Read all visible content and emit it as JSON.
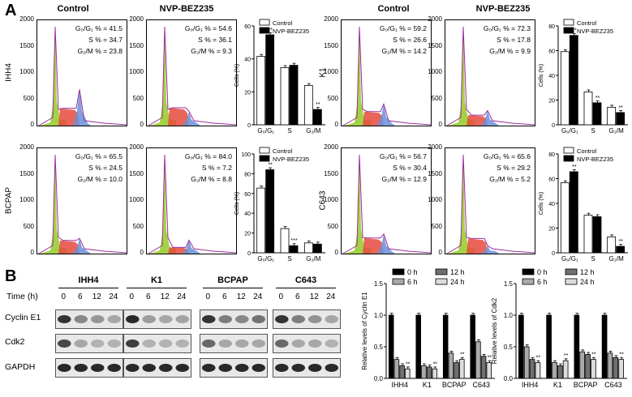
{
  "panel_a": {
    "letter": "A",
    "column_titles": [
      "Control",
      "NVP-BEZ235",
      "Control",
      "NVP-BEZ235"
    ],
    "flow_y_ticks": [
      "2000",
      "1500",
      "1000",
      "500",
      "0"
    ],
    "cell_lines": [
      {
        "name": "IHH4",
        "control": {
          "g0g1": "G₀/G₁ % = 41.5",
          "s": "S % = 34.7",
          "g2m": "G₂/M % = 23.8"
        },
        "treated": {
          "g0g1": "G₀/G₁ % = 54.6",
          "s": "S % = 36.1",
          "g2m": "G₂/M % = 9.3"
        }
      },
      {
        "name": "K1",
        "control": {
          "g0g1": "G₀/G₁ % = 59.2",
          "s": "S % = 26.6",
          "g2m": "G₂/M % = 14.2"
        },
        "treated": {
          "g0g1": "G₀/G₁ % = 72.3",
          "s": "S % = 17.8",
          "g2m": "G₂/M % = 9.9"
        }
      },
      {
        "name": "BCPAP",
        "control": {
          "g0g1": "G₀/G₁ % = 65.5",
          "s": "S % = 24.5",
          "g2m": "G₂/M % = 10.0"
        },
        "treated": {
          "g0g1": "G₀/G₁ % = 84.0",
          "s": "S % = 7.2",
          "g2m": "G₂/M % = 8.8"
        }
      },
      {
        "name": "C643",
        "control": {
          "g0g1": "G₀/G₁ % = 56.7",
          "s": "S % = 30.4",
          "g2m": "G₂/M % = 12.9"
        },
        "treated": {
          "g0g1": "G₀/G₁ % = 65.6",
          "s": "S % = 29.2",
          "g2m": "G₂/M % = 5.2"
        }
      }
    ]
  },
  "panel_b": {
    "letter": "B",
    "time_label": "Time (h)",
    "cell_lines": [
      "IHH4",
      "K1",
      "BCPAP",
      "C643"
    ],
    "timepoints": [
      "0",
      "6",
      "12",
      "24"
    ],
    "proteins": [
      "Cyclin E1",
      "Cdk2",
      "GAPDH"
    ],
    "cyclin_intensity": [
      [
        0.85,
        0.45,
        0.38,
        0.3
      ],
      [
        0.9,
        0.35,
        0.3,
        0.32
      ],
      [
        0.85,
        0.5,
        0.45,
        0.55
      ],
      [
        0.85,
        0.5,
        0.4,
        0.3
      ]
    ],
    "cdk2_intensity": [
      [
        0.75,
        0.3,
        0.25,
        0.25
      ],
      [
        0.8,
        0.25,
        0.25,
        0.25
      ],
      [
        0.6,
        0.3,
        0.3,
        0.3
      ],
      [
        0.6,
        0.3,
        0.3,
        0.25
      ]
    ],
    "gapdh_intensity": [
      [
        0.9,
        0.9,
        0.9,
        0.9
      ],
      [
        0.9,
        0.9,
        0.9,
        0.9
      ],
      [
        0.9,
        0.9,
        0.9,
        0.9
      ],
      [
        0.9,
        0.9,
        0.9,
        0.9
      ]
    ]
  },
  "colors": {
    "control": "#ffffff",
    "treated": "#000000",
    "h0": "#000000",
    "h6": "#aaaaaa",
    "h12": "#707070",
    "h24": "#dddddd",
    "hist_green": "#9acd32",
    "hist_red": "#e64a3c",
    "hist_blue": "#6a8fd8",
    "hist_purple": "#9b2d9b"
  },
  "chart_data": [
    {
      "type": "bar",
      "cell_line": "IHH4",
      "ylabel": "Cells (%)",
      "ylim": [
        0,
        60
      ],
      "yticks": [
        "0",
        "20",
        "40",
        "60"
      ],
      "categories": [
        "G₀/G₁",
        "S",
        "G₂/M"
      ],
      "legend": [
        "Control",
        "NVP-BEZ235"
      ],
      "series": [
        {
          "name": "Control",
          "values": [
            41.5,
            34.7,
            23.8
          ]
        },
        {
          "name": "NVP-BEZ235",
          "values": [
            54.6,
            36.1,
            9.3
          ]
        }
      ],
      "annotations": [
        {
          "category": 0,
          "text": "**"
        },
        {
          "category": 2,
          "text": "**"
        }
      ]
    },
    {
      "type": "bar",
      "cell_line": "K1",
      "ylabel": "Cells (%)",
      "ylim": [
        0,
        80
      ],
      "yticks": [
        "0",
        "20",
        "40",
        "60",
        "80"
      ],
      "categories": [
        "G₀/G₁",
        "S",
        "G₂/M"
      ],
      "legend": [
        "Control",
        "NVP-BEZ235"
      ],
      "series": [
        {
          "name": "Control",
          "values": [
            59.2,
            26.6,
            14.2
          ]
        },
        {
          "name": "NVP-BEZ235",
          "values": [
            72.3,
            17.8,
            9.9
          ]
        }
      ],
      "annotations": [
        {
          "category": 0,
          "text": "**"
        },
        {
          "category": 1,
          "text": "**"
        },
        {
          "category": 2,
          "text": "**"
        }
      ]
    },
    {
      "type": "bar",
      "cell_line": "BCPAP",
      "ylabel": "Cells (%)",
      "ylim": [
        0,
        100
      ],
      "yticks": [
        "0",
        "20",
        "40",
        "60",
        "80",
        "100"
      ],
      "categories": [
        "G₀/G₁",
        "S",
        "G₂/M"
      ],
      "legend": [
        "Control",
        "NVP-BEZ235"
      ],
      "series": [
        {
          "name": "Control",
          "values": [
            65.5,
            24.5,
            10.0
          ]
        },
        {
          "name": "NVP-BEZ235",
          "values": [
            84.0,
            7.2,
            8.8
          ]
        }
      ],
      "annotations": [
        {
          "category": 0,
          "text": "**"
        },
        {
          "category": 1,
          "text": "***"
        }
      ]
    },
    {
      "type": "bar",
      "cell_line": "C643",
      "ylabel": "Cells (%)",
      "ylim": [
        0,
        80
      ],
      "yticks": [
        "0",
        "20",
        "40",
        "60",
        "80"
      ],
      "categories": [
        "G₀/G₁",
        "S",
        "G₂/M"
      ],
      "legend": [
        "Control",
        "NVP-BEZ235"
      ],
      "series": [
        {
          "name": "Control",
          "values": [
            56.7,
            30.4,
            12.9
          ]
        },
        {
          "name": "NVP-BEZ235",
          "values": [
            65.6,
            29.2,
            5.2
          ]
        }
      ],
      "annotations": [
        {
          "category": 0,
          "text": "**"
        },
        {
          "category": 2,
          "text": "**"
        }
      ]
    },
    {
      "type": "bar",
      "ylabel": "Relative levels of Cyclin E1",
      "ylim": [
        0,
        1.5
      ],
      "yticks": [
        "0.0",
        "0.5",
        "1.0",
        "1.5"
      ],
      "categories": [
        "IHH4",
        "K1",
        "BCPAP",
        "C643"
      ],
      "legend": [
        "0 h",
        "12 h",
        "6 h",
        "24 h"
      ],
      "series": [
        {
          "name": "0 h",
          "values": [
            1.0,
            1.0,
            1.0,
            1.0
          ]
        },
        {
          "name": "6 h",
          "values": [
            0.3,
            0.2,
            0.4,
            0.58
          ]
        },
        {
          "name": "12 h",
          "values": [
            0.2,
            0.18,
            0.25,
            0.35
          ]
        },
        {
          "name": "24 h",
          "values": [
            0.15,
            0.15,
            0.3,
            0.25
          ]
        }
      ],
      "annotations": [
        {
          "category": 0,
          "text": "**"
        },
        {
          "category": 1,
          "text": "**"
        },
        {
          "category": 2,
          "text": "**"
        },
        {
          "category": 3,
          "text": "**"
        }
      ]
    },
    {
      "type": "bar",
      "ylabel": "Relative levels of Cdk2",
      "ylim": [
        0,
        1.5
      ],
      "yticks": [
        "0.0",
        "0.5",
        "1.0",
        "1.5"
      ],
      "categories": [
        "IHH4",
        "K1",
        "BCPAP",
        "C643"
      ],
      "legend": [
        "0 h",
        "12 h",
        "6 h",
        "24 h"
      ],
      "series": [
        {
          "name": "0 h",
          "values": [
            1.0,
            1.0,
            1.0,
            1.0
          ]
        },
        {
          "name": "6 h",
          "values": [
            0.5,
            0.25,
            0.42,
            0.4
          ]
        },
        {
          "name": "12 h",
          "values": [
            0.3,
            0.2,
            0.38,
            0.33
          ]
        },
        {
          "name": "24 h",
          "values": [
            0.25,
            0.28,
            0.3,
            0.3
          ]
        }
      ],
      "annotations": [
        {
          "category": 0,
          "text": "**"
        },
        {
          "category": 1,
          "text": "**"
        },
        {
          "category": 2,
          "text": "**"
        },
        {
          "category": 3,
          "text": "**"
        }
      ]
    }
  ]
}
